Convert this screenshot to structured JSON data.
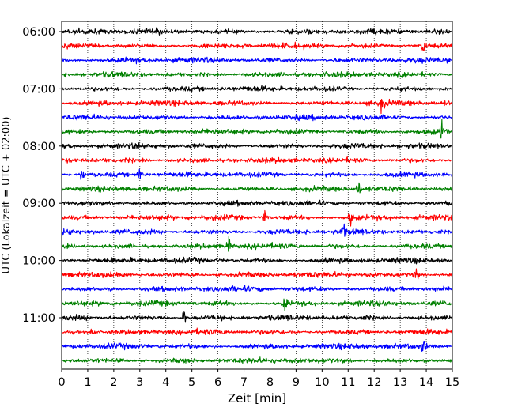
{
  "chart_data": {
    "type": "line",
    "title": "",
    "xlabel": "Zeit  [min]",
    "ylabel": "UTC (Lokalzeit = UTC + 02:00)",
    "xlim": [
      0,
      15
    ],
    "x_ticks": [
      "0",
      "1",
      "2",
      "3",
      "4",
      "5",
      "6",
      "7",
      "8",
      "9",
      "10",
      "11",
      "12",
      "13",
      "14",
      "15"
    ],
    "y_ticks": [
      "06:00",
      "07:00",
      "08:00",
      "09:00",
      "10:00",
      "11:00"
    ],
    "grid": "vertical dotted",
    "trace_interval_min": 15,
    "trace_colors": [
      "#000000",
      "#ff0000",
      "#0000ff",
      "#008000"
    ],
    "series": [
      {
        "start": "06:00",
        "color": "#000000"
      },
      {
        "start": "06:15",
        "color": "#ff0000",
        "events": [
          13.9
        ]
      },
      {
        "start": "06:30",
        "color": "#0000ff"
      },
      {
        "start": "06:45",
        "color": "#008000"
      },
      {
        "start": "07:00",
        "color": "#000000"
      },
      {
        "start": "07:15",
        "color": "#ff0000",
        "events": [
          12.3
        ]
      },
      {
        "start": "07:30",
        "color": "#0000ff"
      },
      {
        "start": "07:45",
        "color": "#008000",
        "events": [
          14.6
        ]
      },
      {
        "start": "08:00",
        "color": "#000000"
      },
      {
        "start": "08:15",
        "color": "#ff0000"
      },
      {
        "start": "08:30",
        "color": "#0000ff",
        "events": [
          0.8,
          3.0
        ]
      },
      {
        "start": "08:45",
        "color": "#008000",
        "events": [
          11.4
        ]
      },
      {
        "start": "09:00",
        "color": "#000000"
      },
      {
        "start": "09:15",
        "color": "#ff0000",
        "events": [
          7.8,
          11.1
        ]
      },
      {
        "start": "09:30",
        "color": "#0000ff",
        "events": [
          10.8
        ]
      },
      {
        "start": "09:45",
        "color": "#008000",
        "events": [
          6.4
        ]
      },
      {
        "start": "10:00",
        "color": "#000000"
      },
      {
        "start": "10:15",
        "color": "#ff0000",
        "events": [
          13.6
        ]
      },
      {
        "start": "10:30",
        "color": "#0000ff"
      },
      {
        "start": "10:45",
        "color": "#008000",
        "events": [
          8.6
        ]
      },
      {
        "start": "11:00",
        "color": "#000000",
        "events": [
          4.7
        ]
      },
      {
        "start": "11:15",
        "color": "#ff0000",
        "events": [
          1.2
        ]
      },
      {
        "start": "11:30",
        "color": "#0000ff",
        "events": [
          13.9
        ]
      },
      {
        "start": "11:45",
        "color": "#008000"
      }
    ]
  }
}
